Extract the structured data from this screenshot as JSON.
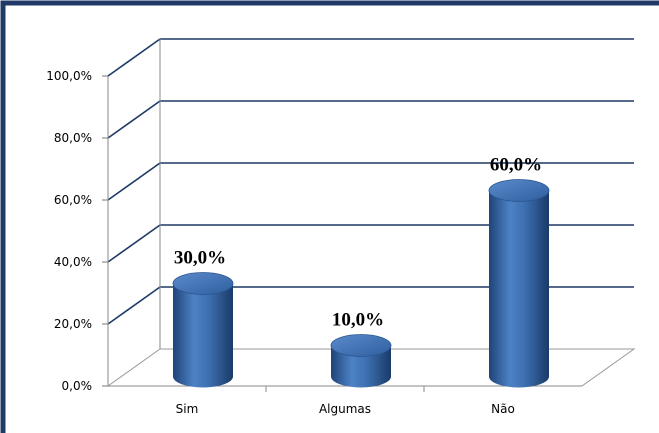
{
  "chart_data": {
    "type": "bar",
    "categories": [
      "Sim",
      "Algumas",
      "Não"
    ],
    "values": [
      30,
      10,
      60
    ],
    "data_labels": [
      "30,0%",
      "10,0%",
      "60,0%"
    ],
    "y_ticks": [
      "0,0%",
      "20,0%",
      "40,0%",
      "60,0%",
      "80,0%",
      "100,0%"
    ],
    "ylim": [
      0,
      100
    ],
    "grid": true,
    "style": "3d-cylinder",
    "colors": {
      "bar": "#3d6fb0",
      "bar_dark": "#1f4478",
      "bar_light": "#6f9bd6",
      "frame": "#1f3a66",
      "grid": "#1f3a66"
    }
  }
}
